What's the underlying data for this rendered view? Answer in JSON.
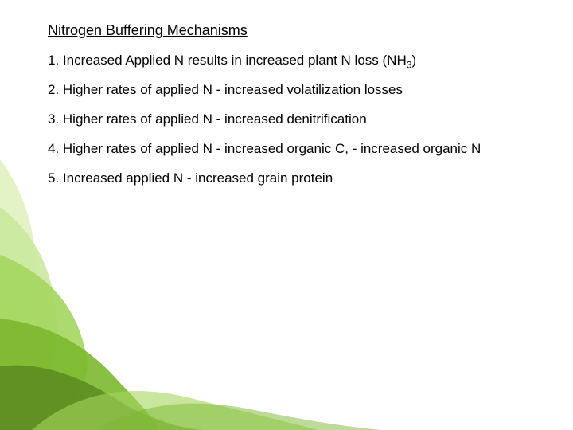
{
  "slide": {
    "heading": "Nitrogen Buffering Mechanisms",
    "items": [
      {
        "prefix": "1. Increased Applied N results in increased plant N loss (NH",
        "sub": "3",
        "suffix": ")"
      },
      {
        "prefix": "2. Higher rates of applied N - increased volatilization losses",
        "sub": "",
        "suffix": ""
      },
      {
        "prefix": "3. Higher rates of applied N - increased denitrification",
        "sub": "",
        "suffix": ""
      },
      {
        "prefix": "4. Higher rates of applied N - increased organic C, - increased organic N",
        "sub": "",
        "suffix": ""
      },
      {
        "prefix": "5. Increased applied N - increased grain protein",
        "sub": "",
        "suffix": ""
      }
    ]
  },
  "decoration": {
    "colors": {
      "leaf_dark": "#5a8a1f",
      "leaf_mid": "#7cb82f",
      "leaf_light": "#a4d65e",
      "leaf_pale": "#c8e89a",
      "leaf_xlight": "#e0f2c0"
    }
  }
}
